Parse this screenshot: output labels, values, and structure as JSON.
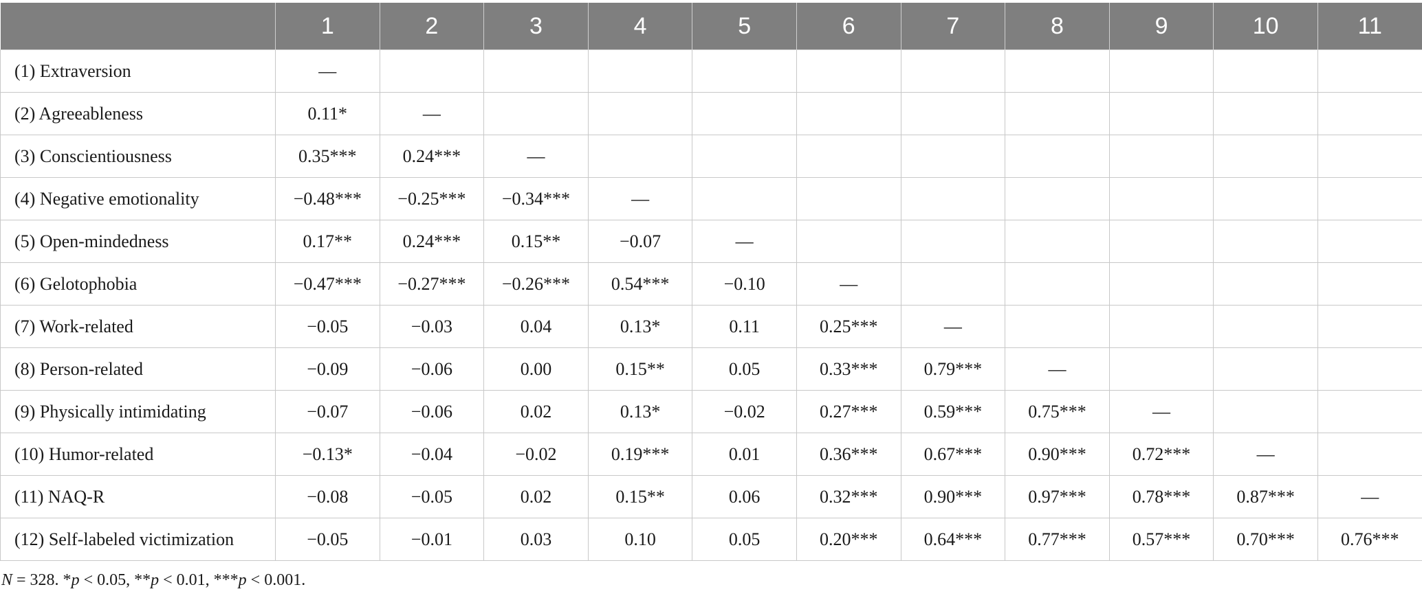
{
  "table": {
    "columns": [
      "",
      "1",
      "2",
      "3",
      "4",
      "5",
      "6",
      "7",
      "8",
      "9",
      "10",
      "11"
    ],
    "rows": [
      {
        "label": "(1) Extraversion",
        "values": [
          "—",
          "",
          "",
          "",
          "",
          "",
          "",
          "",
          "",
          "",
          ""
        ]
      },
      {
        "label": "(2) Agreeableness",
        "values": [
          "0.11*",
          "—",
          "",
          "",
          "",
          "",
          "",
          "",
          "",
          "",
          ""
        ]
      },
      {
        "label": "(3) Conscientiousness",
        "values": [
          "0.35***",
          "0.24***",
          "—",
          "",
          "",
          "",
          "",
          "",
          "",
          "",
          ""
        ]
      },
      {
        "label": "(4) Negative emotionality",
        "values": [
          "−0.48***",
          "−0.25***",
          "−0.34***",
          "—",
          "",
          "",
          "",
          "",
          "",
          "",
          ""
        ]
      },
      {
        "label": "(5) Open-mindedness",
        "values": [
          "0.17**",
          "0.24***",
          "0.15**",
          "−0.07",
          "—",
          "",
          "",
          "",
          "",
          "",
          ""
        ]
      },
      {
        "label": "(6) Gelotophobia",
        "values": [
          "−0.47***",
          "−0.27***",
          "−0.26***",
          "0.54***",
          "−0.10",
          "—",
          "",
          "",
          "",
          "",
          ""
        ]
      },
      {
        "label": "(7) Work-related",
        "values": [
          "−0.05",
          "−0.03",
          "0.04",
          "0.13*",
          "0.11",
          "0.25***",
          "—",
          "",
          "",
          "",
          ""
        ]
      },
      {
        "label": "(8) Person-related",
        "values": [
          "−0.09",
          "−0.06",
          "0.00",
          "0.15**",
          "0.05",
          "0.33***",
          "0.79***",
          "—",
          "",
          "",
          ""
        ]
      },
      {
        "label": "(9) Physically intimidating",
        "values": [
          "−0.07",
          "−0.06",
          "0.02",
          "0.13*",
          "−0.02",
          "0.27***",
          "0.59***",
          "0.75***",
          "—",
          "",
          ""
        ]
      },
      {
        "label": "(10) Humor-related",
        "values": [
          "−0.13*",
          "−0.04",
          "−0.02",
          "0.19***",
          "0.01",
          "0.36***",
          "0.67***",
          "0.90***",
          "0.72***",
          "—",
          ""
        ]
      },
      {
        "label": "(11) NAQ-R",
        "values": [
          "−0.08",
          "−0.05",
          "0.02",
          "0.15**",
          "0.06",
          "0.32***",
          "0.90***",
          "0.97***",
          "0.78***",
          "0.87***",
          "—"
        ]
      },
      {
        "label": "(12) Self-labeled victimization",
        "values": [
          "−0.05",
          "−0.01",
          "0.03",
          "0.10",
          "0.05",
          "0.20***",
          "0.64***",
          "0.77***",
          "0.57***",
          "0.70***",
          "0.76***"
        ]
      }
    ]
  },
  "note": {
    "n_symbol": "N",
    "n_rest": " = 328. *",
    "p1": "p",
    "p1_rest": " < 0.05, **",
    "p2": "p",
    "p2_rest": " < 0.01, ***",
    "p3": "p",
    "p3_rest": " < 0.001."
  }
}
